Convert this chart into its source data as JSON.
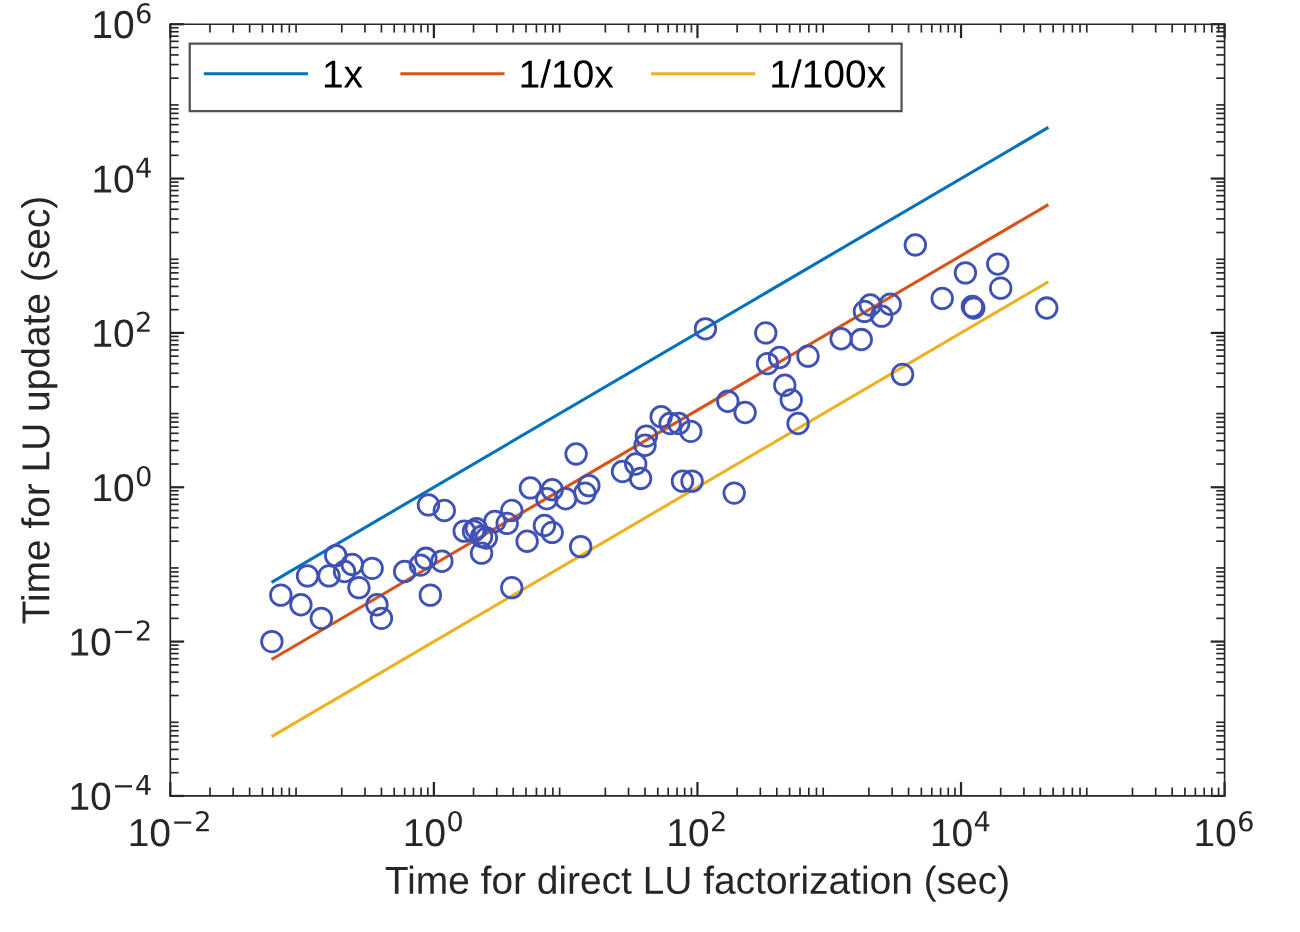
{
  "chart_data": {
    "type": "scatter",
    "xlabel": "Time for direct LU factorization (sec)",
    "ylabel": "Time for LU update (sec)",
    "log": "xy",
    "xlim": [
      0.01,
      1000000
    ],
    "ylim": [
      0.0001,
      1000000
    ],
    "xticks": [
      {
        "value": 0.01,
        "label": "10$^{−2}$"
      },
      {
        "value": 1,
        "label": "10$^{0}$"
      },
      {
        "value": 100,
        "label": "10$^{2}$"
      },
      {
        "value": 10000,
        "label": "10$^{4}$"
      },
      {
        "value": 1000000,
        "label": "10$^{6}$"
      }
    ],
    "yticks": [
      {
        "value": 0.0001,
        "label": "10$^{−4}$"
      },
      {
        "value": 0.01,
        "label": "10$^{−2}$"
      },
      {
        "value": 1,
        "label": "10$^{0}$"
      },
      {
        "value": 100,
        "label": "10$^{2}$"
      },
      {
        "value": 10000,
        "label": "10$^{4}$"
      },
      {
        "value": 1000000,
        "label": "10$^{6}$"
      }
    ],
    "grid": false,
    "legend": "top left",
    "series": [
      {
        "name": "1x",
        "type": "line",
        "color": "#0072bd",
        "line_style": "solid",
        "x": [
          0.06,
          45000
        ],
        "values": [
          0.06,
          45000
        ]
      },
      {
        "name": "1/10x",
        "type": "line",
        "color": "#d95319",
        "line_style": "solid",
        "x": [
          0.06,
          45000
        ],
        "values": [
          0.006,
          4500
        ]
      },
      {
        "name": "1/100x",
        "type": "line",
        "color": "#edb120",
        "line_style": "solid",
        "x": [
          0.06,
          45000
        ],
        "values": [
          0.0006,
          450
        ]
      },
      {
        "color": "#3f51b5",
        "marker": "circle",
        "x": [
          0.059,
          0.069,
          0.098,
          0.11,
          0.14,
          0.16,
          0.18,
          0.21,
          0.24,
          0.27,
          0.34,
          0.37,
          0.4,
          0.6,
          0.79,
          0.87,
          0.91,
          0.94,
          1.15,
          1.2,
          1.7,
          2.0,
          2.1,
          2.3,
          2.3,
          2.5,
          2.9,
          3.6,
          3.9,
          3.9,
          5.1,
          5.4,
          6.9,
          7.2,
          7.9,
          7.9,
          10,
          12,
          13,
          14,
          15,
          27,
          34,
          37,
          40,
          41,
          53,
          62,
          72,
          77,
          89,
          91,
          115,
          170,
          190,
          230,
          330,
          340,
          420,
          460,
          515,
          580,
          690,
          1230,
          1750,
          1850,
          2050,
          2500,
          2900,
          3600,
          4500,
          7200,
          10800,
          12200,
          12500,
          19000,
          20000,
          44700
        ],
        "values": [
          0.01,
          0.04,
          0.03,
          0.071,
          0.02,
          0.071,
          0.13,
          0.081,
          0.1,
          0.05,
          0.089,
          0.03,
          0.02,
          0.081,
          0.098,
          0.12,
          0.59,
          0.04,
          0.11,
          0.5,
          0.27,
          0.27,
          0.29,
          0.23,
          0.14,
          0.22,
          0.36,
          0.34,
          0.05,
          0.5,
          0.2,
          0.98,
          0.32,
          0.71,
          0.93,
          0.26,
          0.71,
          2.7,
          0.17,
          0.84,
          1.05,
          1.6,
          2.0,
          1.3,
          3.5,
          4.6,
          8.2,
          6.7,
          6.7,
          1.2,
          5.3,
          1.2,
          113,
          13,
          0.84,
          9.3,
          100,
          40,
          48,
          21,
          13.5,
          6.7,
          50,
          84,
          82,
          190,
          230,
          165,
          235,
          29,
          1380,
          280,
          600,
          220,
          210,
          780,
          380,
          210
        ]
      }
    ]
  }
}
